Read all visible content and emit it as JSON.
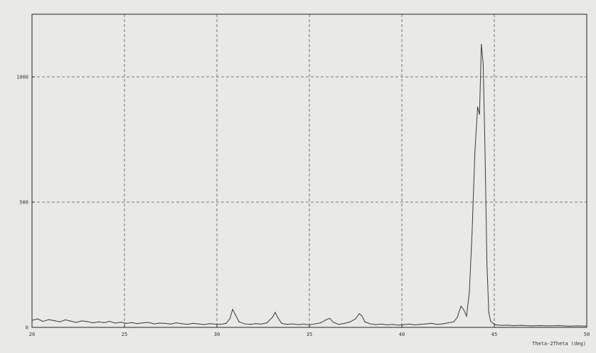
{
  "chart_data": {
    "type": "line",
    "title": "",
    "xlabel": "Theta-2Theta (deg)",
    "ylabel": "",
    "xlim": [
      20,
      50
    ],
    "ylim": [
      0,
      1250
    ],
    "x_ticks": [
      20,
      25,
      30,
      35,
      40,
      45,
      50
    ],
    "y_ticks": [
      0,
      500,
      1000
    ],
    "x_tick_labels": [
      "20",
      "25",
      "30",
      "35",
      "40",
      "45",
      "50"
    ],
    "y_tick_labels": [
      "0",
      "500",
      "1000"
    ],
    "grid": true,
    "grid_style": "dashed",
    "colors": {
      "line": "#3a3a3a",
      "frame": "#222222",
      "grid": "#555555",
      "background": "#e9e9e7"
    },
    "series": [
      {
        "x": [
          20.0,
          20.3,
          20.6,
          20.9,
          21.2,
          21.5,
          21.8,
          22.1,
          22.4,
          22.7,
          23.0,
          23.3,
          23.6,
          23.9,
          24.2,
          24.5,
          24.8,
          25.1,
          25.4,
          25.7,
          26.0,
          26.3,
          26.6,
          26.9,
          27.2,
          27.5,
          27.8,
          28.1,
          28.4,
          28.7,
          29.0,
          29.3,
          29.6,
          29.9,
          30.2,
          30.5,
          30.7,
          30.85,
          31.0,
          31.2,
          31.5,
          31.8,
          32.1,
          32.4,
          32.7,
          33.0,
          33.15,
          33.3,
          33.5,
          33.8,
          34.1,
          34.4,
          34.7,
          35.0,
          35.3,
          35.6,
          35.9,
          36.1,
          36.3,
          36.6,
          36.9,
          37.2,
          37.5,
          37.7,
          37.85,
          38.0,
          38.3,
          38.6,
          38.9,
          39.2,
          39.5,
          39.8,
          40.1,
          40.4,
          40.7,
          41.0,
          41.3,
          41.6,
          41.9,
          42.2,
          42.5,
          42.8,
          43.0,
          43.2,
          43.35,
          43.5,
          43.65,
          43.8,
          43.95,
          44.1,
          44.2,
          44.3,
          44.4,
          44.5,
          44.6,
          44.7,
          44.8,
          44.95,
          45.1,
          45.4,
          45.7,
          46.0,
          46.5,
          47.0,
          47.5,
          48.0,
          48.5,
          49.0,
          49.5,
          50.0
        ],
        "y": [
          28,
          34,
          24,
          31,
          27,
          22,
          30,
          25,
          20,
          26,
          23,
          18,
          22,
          19,
          24,
          17,
          21,
          16,
          19,
          15,
          18,
          20,
          14,
          17,
          16,
          13,
          18,
          15,
          12,
          16,
          14,
          11,
          15,
          13,
          12,
          16,
          35,
          72,
          50,
          22,
          14,
          12,
          15,
          13,
          18,
          40,
          60,
          38,
          16,
          12,
          14,
          11,
          13,
          10,
          14,
          18,
          30,
          36,
          20,
          12,
          16,
          22,
          34,
          55,
          45,
          22,
          14,
          11,
          13,
          10,
          12,
          9,
          11,
          13,
          10,
          12,
          14,
          16,
          12,
          14,
          18,
          22,
          40,
          85,
          70,
          45,
          140,
          380,
          700,
          880,
          850,
          1130,
          1050,
          700,
          260,
          60,
          25,
          15,
          10,
          8,
          9,
          7,
          8,
          6,
          7,
          6,
          7,
          5,
          6,
          5
        ]
      }
    ]
  }
}
